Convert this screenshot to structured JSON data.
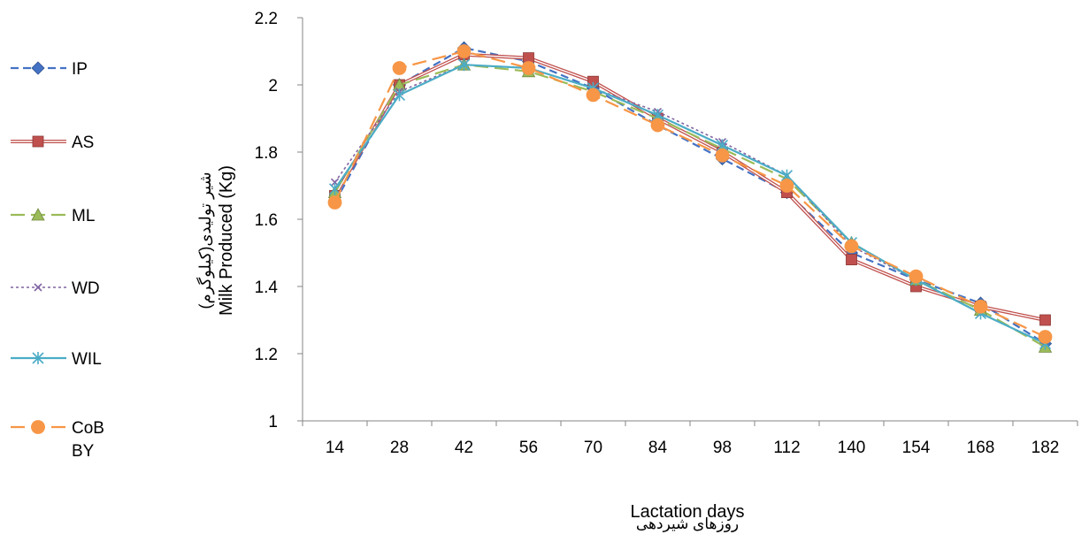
{
  "chart_data": {
    "type": "line",
    "title": "",
    "xlabel": "Lactation days",
    "xlabel_fa": "روزهای شیردهی",
    "ylabel": "Milk Produced (Kg)",
    "ylabel_fa": "شیر تولیدی(کیلوگرم)",
    "categories": [
      "14",
      "28",
      "42",
      "56",
      "70",
      "84",
      "98",
      "112",
      "140",
      "154",
      "168",
      "182"
    ],
    "ylim": [
      1,
      2.2
    ],
    "yticks": [
      "1",
      "1.2",
      "1.4",
      "1.6",
      "1.8",
      "2",
      "2.2"
    ],
    "grid": false,
    "legend_position": "left",
    "series": [
      {
        "name": "IP",
        "color": "#4472c4",
        "marker": "diamond",
        "dash": "dashed",
        "values": [
          1.65,
          2.0,
          2.11,
          2.07,
          1.99,
          1.88,
          1.78,
          1.68,
          1.5,
          1.42,
          1.35,
          1.23
        ]
      },
      {
        "name": "AS",
        "color": "#c0504d",
        "marker": "square",
        "dash": "double",
        "values": [
          1.67,
          2.0,
          2.09,
          2.08,
          2.01,
          1.9,
          1.8,
          1.68,
          1.48,
          1.4,
          1.34,
          1.3
        ]
      },
      {
        "name": "ML",
        "color": "#9bbb59",
        "marker": "triangle",
        "dash": "longdash",
        "values": [
          1.68,
          2.0,
          2.06,
          2.04,
          1.98,
          1.9,
          1.81,
          1.72,
          1.53,
          1.42,
          1.33,
          1.22
        ]
      },
      {
        "name": "WD",
        "color": "#8064a2",
        "marker": "x",
        "dash": "dotted",
        "values": [
          1.71,
          1.98,
          2.06,
          2.05,
          1.99,
          1.92,
          1.83,
          1.73,
          1.52,
          1.42,
          1.32,
          1.23
        ]
      },
      {
        "name": "WIL",
        "color": "#4bacc6",
        "marker": "star",
        "dash": "solid",
        "values": [
          1.69,
          1.97,
          2.06,
          2.05,
          1.99,
          1.91,
          1.82,
          1.73,
          1.53,
          1.42,
          1.32,
          1.23
        ]
      },
      {
        "name": "CoB BY",
        "color": "#f79646",
        "marker": "circle",
        "dash": "longdash",
        "values": [
          1.65,
          2.05,
          2.1,
          2.05,
          1.97,
          1.88,
          1.79,
          1.7,
          1.52,
          1.43,
          1.34,
          1.25
        ]
      }
    ]
  }
}
